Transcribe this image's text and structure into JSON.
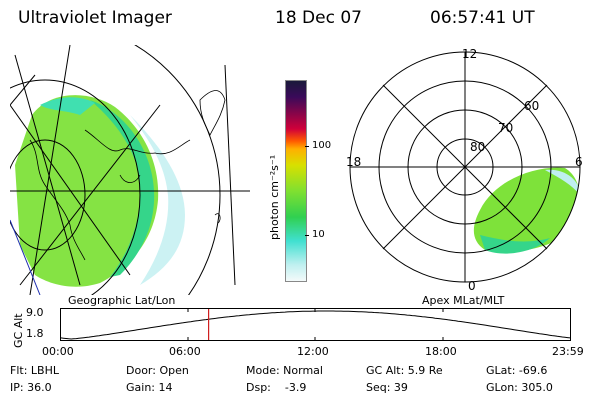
{
  "header": {
    "title": "Ultraviolet Imager",
    "date": "18 Dec 07",
    "time": "06:57:41 UT"
  },
  "geo_panel": {
    "label": "Geographic Lat/Lon"
  },
  "apex_panel": {
    "label": "Apex MLat/MLT",
    "lat_labels": [
      "80",
      "70",
      "60"
    ],
    "mlt_labels": {
      "top": "12",
      "left": "18",
      "right": "6",
      "bottom": "0"
    }
  },
  "colorbar": {
    "label": "photon cm⁻²s⁻¹",
    "ticks": [
      "100",
      "10"
    ],
    "scale": "log",
    "colors": [
      "#1a1a3a",
      "#3a0a5a",
      "#d0003a",
      "#ff5a00",
      "#ffb000",
      "#d8e000",
      "#80e030",
      "#30d050",
      "#40e0d0",
      "#c0f0f0"
    ]
  },
  "timeline": {
    "ylabel": "GC Alt",
    "ymax": "9.0",
    "ymin": "1.8",
    "xticks": [
      "00:00",
      "06:00",
      "12:00",
      "18:00",
      "23:59"
    ],
    "current_time_hours": 6.96
  },
  "info": {
    "flt": "Flt: LBHL",
    "ip": "IP: 36.0",
    "door": "Door: Open",
    "gain": "Gain: 14",
    "mode": "Mode: Normal",
    "dsp": "Dsp:    -3.9",
    "gcalt": "GC Alt: 5.9 Re",
    "seq": "Seq: 39",
    "glat": "GLat: -69.6",
    "glon": "GLon: 305.0"
  }
}
